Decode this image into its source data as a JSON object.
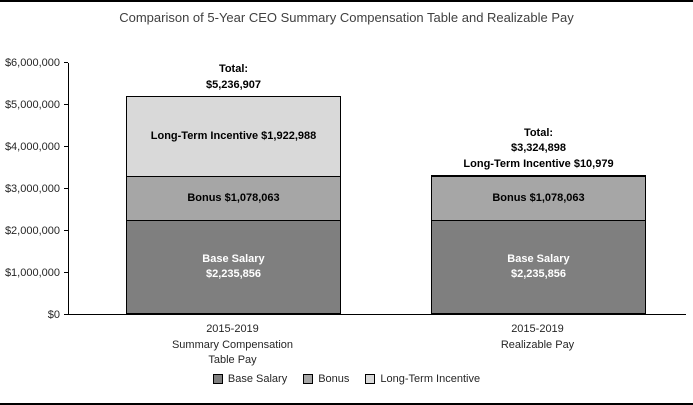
{
  "page": {
    "title": "Comparison of 5-Year CEO Summary Compensation Table and Realizable Pay"
  },
  "chart_data": {
    "type": "bar",
    "stacked": true,
    "title": "Comparison of 5-Year CEO Summary Compensation Table and Realizable Pay",
    "xlabel": "",
    "ylabel": "",
    "ylim": [
      0,
      6000000
    ],
    "grid": false,
    "legend_position": "bottom",
    "ytick_labels": [
      "$0",
      "$1,000,000",
      "$2,000,000",
      "$3,000,000",
      "$4,000,000",
      "$5,000,000",
      "$6,000,000"
    ],
    "categories": [
      "2015-2019 Summary Compensation Table Pay",
      "2015-2019 Realizable Pay"
    ],
    "series": [
      {
        "name": "Base Salary",
        "values": [
          2235856,
          2235856
        ],
        "color": "#7f7f7f"
      },
      {
        "name": "Bonus",
        "values": [
          1078063,
          1078063
        ],
        "color": "#a6a6a6"
      },
      {
        "name": "Long-Term Incentive",
        "values": [
          1922988,
          10979
        ],
        "color": "#d9d9d9"
      }
    ],
    "totals": [
      5236907,
      3324898
    ],
    "bars": [
      {
        "category_lines": [
          "2015-2019",
          "Summary Compensation",
          "Table Pay"
        ],
        "annotation_lines": [
          "Total:",
          "$5,236,907"
        ],
        "total": 5236907,
        "segments": [
          {
            "name": "Base Salary",
            "value": 2235856,
            "color": "#7f7f7f",
            "label_color": "#ffffff",
            "label_lines": [
              "Base Salary",
              "$2,235,856"
            ]
          },
          {
            "name": "Bonus",
            "value": 1078063,
            "color": "#a6a6a6",
            "label_color": "#000000",
            "label_lines": [
              "Bonus $1,078,063"
            ]
          },
          {
            "name": "Long-Term Incentive",
            "value": 1922988,
            "color": "#d9d9d9",
            "label_color": "#000000",
            "label_lines": [
              "Long-Term Incentive $1,922,988"
            ]
          }
        ]
      },
      {
        "category_lines": [
          "2015-2019",
          "Realizable Pay"
        ],
        "annotation_lines": [
          "Total:",
          "$3,324,898",
          "Long-Term Incentive $10,979"
        ],
        "total": 3324898,
        "segments": [
          {
            "name": "Base Salary",
            "value": 2235856,
            "color": "#7f7f7f",
            "label_color": "#ffffff",
            "label_lines": [
              "Base Salary",
              "$2,235,856"
            ]
          },
          {
            "name": "Bonus",
            "value": 1078063,
            "color": "#a6a6a6",
            "label_color": "#000000",
            "label_lines": [
              "Bonus $1,078,063"
            ]
          },
          {
            "name": "Long-Term Incentive",
            "value": 10979,
            "color": "#d9d9d9",
            "label_color": "#000000",
            "label_lines": []
          }
        ]
      }
    ]
  },
  "legend": {
    "items": [
      {
        "label": "Base Salary",
        "color": "#7f7f7f"
      },
      {
        "label": "Bonus",
        "color": "#a6a6a6"
      },
      {
        "label": "Long-Term Incentive",
        "color": "#d9d9d9"
      }
    ]
  },
  "colors": {
    "axis": "#000000",
    "title_text": "#404040",
    "tick_text": "#262626"
  }
}
